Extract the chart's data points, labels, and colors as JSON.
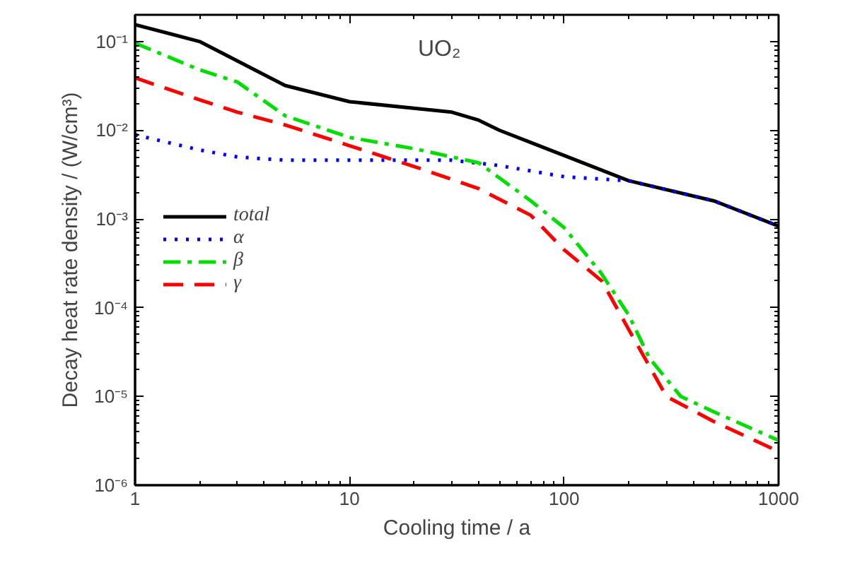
{
  "chart_data": {
    "type": "line",
    "title": "UO₂",
    "xlabel": "Cooling time / a",
    "ylabel": "Decay heat rate density / (W/cm³)",
    "log": "xy",
    "grid": false,
    "legend": "left",
    "xlim": [
      1,
      1000
    ],
    "xticks": [
      1,
      10,
      100,
      1000
    ],
    "ylim": [
      1e-06,
      0.2
    ],
    "yticks": [
      {
        "value": 1e-06,
        "label": "10⁻⁶"
      },
      {
        "value": 1e-05,
        "label": "10⁻⁵"
      },
      {
        "value": 0.0001,
        "label": "10⁻⁴"
      },
      {
        "value": 0.001,
        "label": "10⁻³"
      },
      {
        "value": 0.01,
        "label": "10⁻²"
      },
      {
        "value": 0.1,
        "label": "10⁻¹"
      }
    ],
    "series": [
      {
        "name": "total",
        "color": "#000000",
        "line_style": "solid",
        "x": [
          1,
          2,
          5,
          10,
          30,
          40,
          50,
          100,
          200,
          500,
          1000
        ],
        "values": [
          0.155,
          0.1,
          0.032,
          0.021,
          0.016,
          0.013,
          0.01,
          0.0052,
          0.0027,
          0.0016,
          0.00083
        ]
      },
      {
        "name": "α",
        "color": "#0000ff",
        "line_style": "dotted",
        "x": [
          1,
          2,
          3,
          5,
          10,
          30,
          50,
          100,
          200,
          500,
          1000
        ],
        "values": [
          0.0089,
          0.006,
          0.005,
          0.0046,
          0.0046,
          0.0046,
          0.004,
          0.003,
          0.0027,
          0.0016,
          0.00083
        ]
      },
      {
        "name": "β",
        "color": "#00dd00",
        "line_style": "dashdot",
        "x": [
          1,
          2,
          3,
          5,
          10,
          20,
          40,
          70,
          100,
          148,
          200,
          250,
          350,
          500,
          1000
        ],
        "values": [
          0.096,
          0.048,
          0.035,
          0.0146,
          0.0083,
          0.0062,
          0.0043,
          0.0016,
          0.0008,
          0.00025,
          8.3e-05,
          2.7e-05,
          1e-05,
          6.7e-06,
          3.2e-06
        ]
      },
      {
        "name": "γ",
        "color": "#ff0000",
        "line_style": "dashed",
        "x": [
          1,
          2,
          3,
          5,
          10,
          20,
          40,
          70,
          100,
          150,
          200,
          300,
          500,
          1000
        ],
        "values": [
          0.039,
          0.022,
          0.016,
          0.0115,
          0.0067,
          0.0039,
          0.0022,
          0.0011,
          0.00045,
          0.0002,
          5.7e-05,
          1e-05,
          5.2e-06,
          2.4e-06
        ]
      }
    ]
  }
}
